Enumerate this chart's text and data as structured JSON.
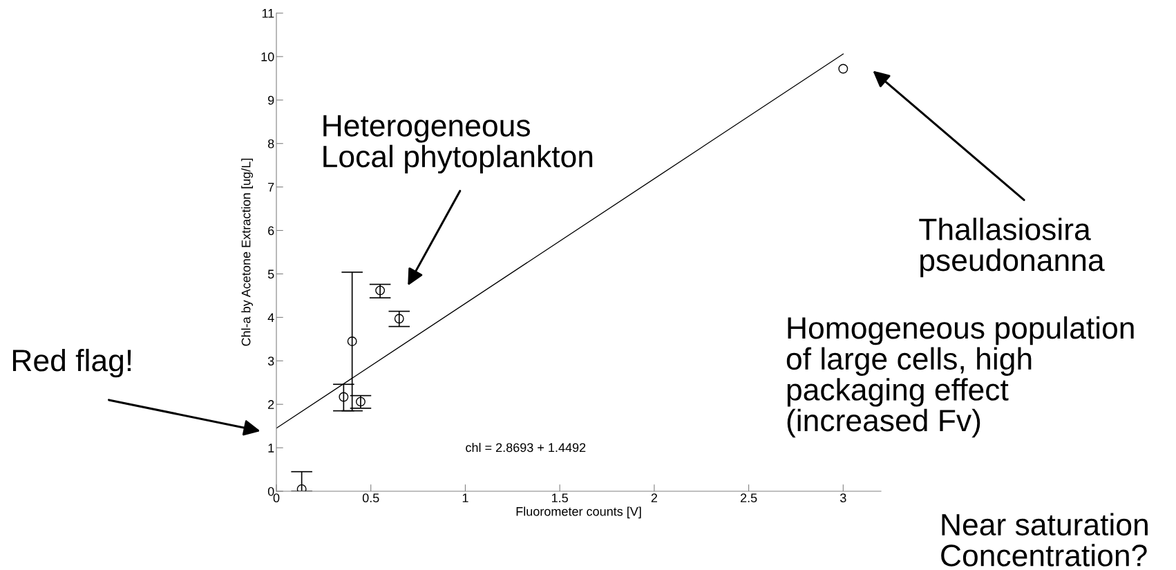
{
  "chart_data": {
    "type": "scatter",
    "xlabel": "Fluorometer counts [V]",
    "ylabel": "Chl-a by Acetone Extraction [ug/L]",
    "xlim": [
      0,
      3.2
    ],
    "ylim": [
      0,
      11
    ],
    "xticks": [
      0,
      0.5,
      1,
      1.5,
      2,
      2.5,
      3
    ],
    "yticks": [
      0,
      1,
      2,
      3,
      4,
      5,
      6,
      7,
      8,
      9,
      10,
      11
    ],
    "grid": false,
    "legend": false,
    "series": [
      {
        "marker": "circle",
        "color": "#000000",
        "x": [
          0.134,
          0.356,
          0.401,
          0.446,
          0.549,
          0.65,
          3.0
        ],
        "values": [
          0.05,
          2.17,
          3.45,
          2.06,
          4.62,
          3.97,
          9.72
        ],
        "errors": [
          [
            0,
            0.45
          ],
          [
            1.85,
            2.46
          ],
          [
            1.85,
            5.04
          ],
          [
            1.91,
            2.2
          ],
          [
            4.45,
            4.76
          ],
          [
            3.79,
            4.14
          ],
          null
        ]
      },
      {
        "type": "line",
        "marker": "none",
        "line_style": "solid",
        "color": "#000000",
        "x": [
          0,
          3
        ],
        "values": [
          1.45,
          10.06
        ]
      }
    ],
    "annotations": [
      "Heterogeneous\nLocal phytoplankton",
      "Red flag!",
      "Thallasiosira\npseudonanna",
      "Homogeneous population\nof large cells, high\npackaging effect\n(increased Fv)",
      "Near saturation\nConcentration?",
      "chl = 2.8693 + 1.4492"
    ]
  }
}
